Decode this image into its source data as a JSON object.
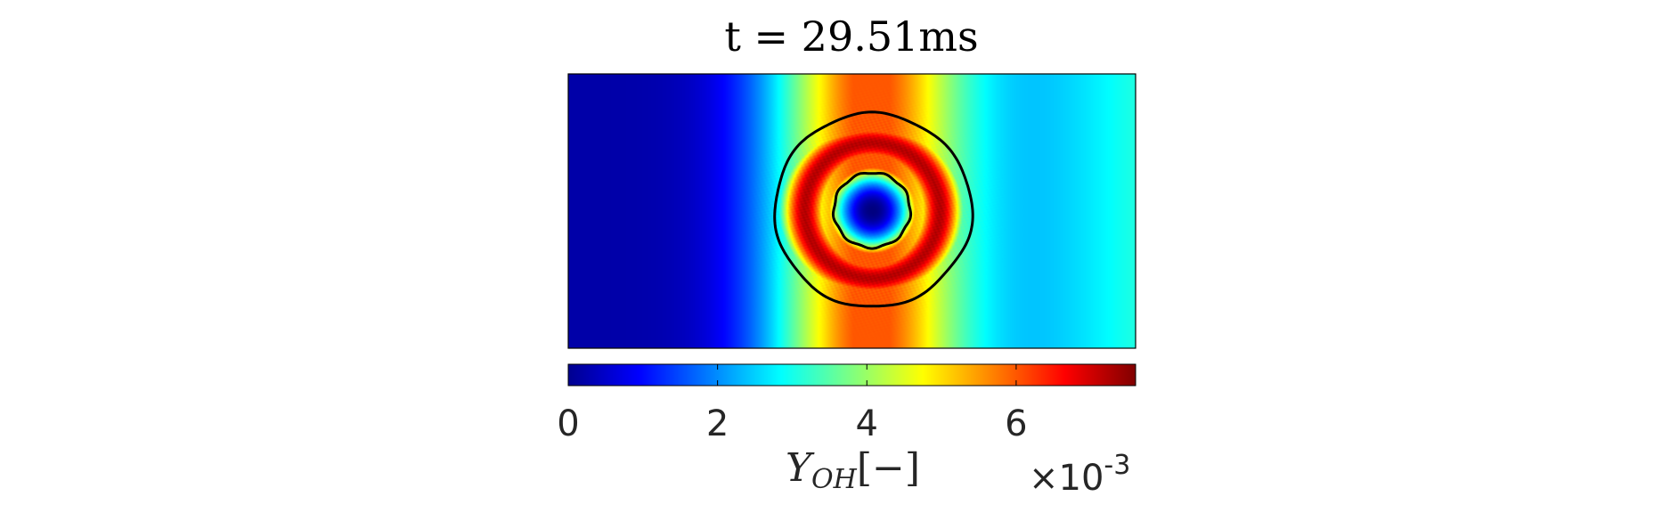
{
  "chart_data": {
    "type": "heatmap",
    "title": "t = 29.51ms",
    "colormap": "jet",
    "colorbar": {
      "range": [
        0,
        7.6
      ],
      "ticks": [
        0,
        2,
        4,
        6
      ],
      "tick_labels": [
        "0",
        "2",
        "4",
        "6"
      ],
      "label_main": "Y",
      "label_sub": "OH",
      "label_unit": "[−]",
      "multiplier_base": "×10",
      "multiplier_exp": "-3",
      "orientation": "horizontal",
      "placement": "below"
    },
    "field": {
      "description_of_values": [
        {
          "region": "left edge",
          "value": 0.3
        },
        {
          "region": "right edge",
          "value": 2.6
        },
        {
          "region": "annulus peak",
          "value": 7.2
        },
        {
          "region": "kernel center",
          "value": 0.0
        }
      ],
      "contours": [
        {
          "name": "outer contour"
        },
        {
          "name": "inner contour"
        }
      ]
    },
    "grid": false,
    "legend": "none"
  },
  "colors": {
    "contour": "#000000",
    "frame": "#000000",
    "tick_text": "#262626"
  }
}
